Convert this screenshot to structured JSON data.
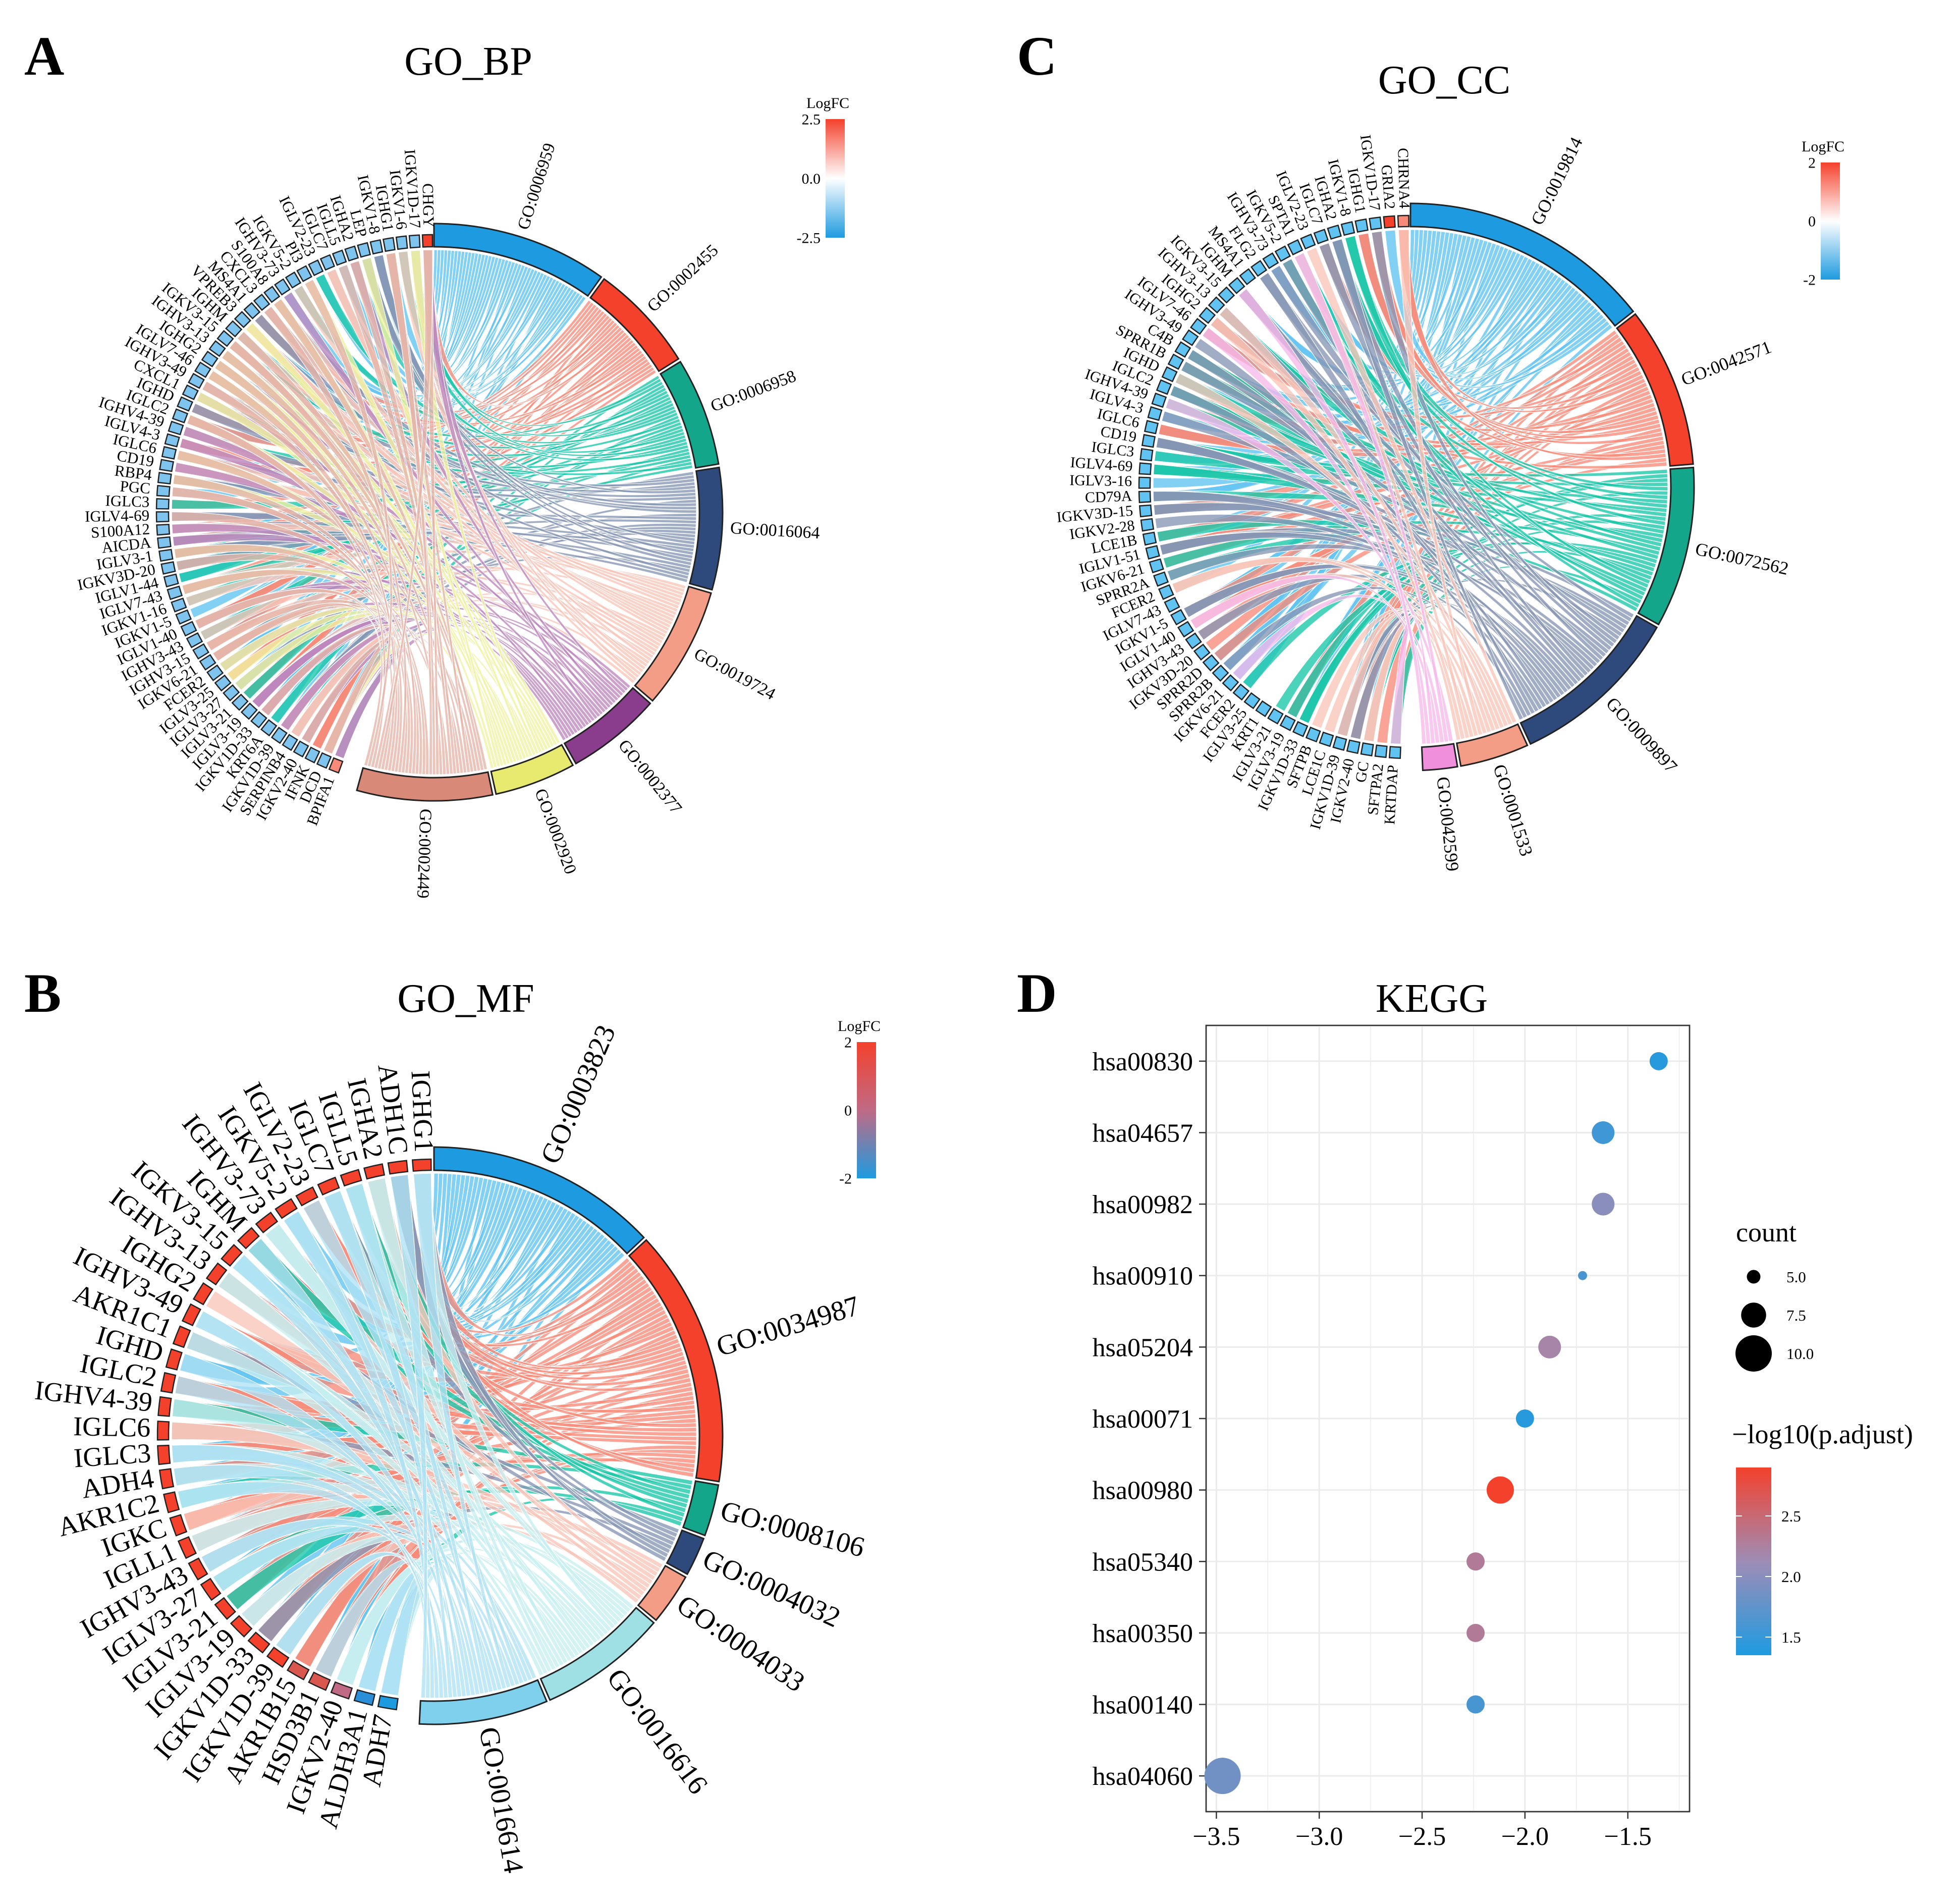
{
  "panels": {
    "A": {
      "letter": "A",
      "title": "GO_BP",
      "legend": {
        "title": "LogFC",
        "max_label": "2.5",
        "mid_label": "0.0",
        "min_label": "-2.5",
        "low": "#1E9BE0",
        "mid": "#FFFFFF",
        "high": "#F4412C"
      },
      "terms": [
        {
          "id": "GO:0006959",
          "color": "#1E9BE0",
          "light": "#60C3F2",
          "share": 13
        },
        {
          "id": "GO:0002455",
          "color": "#F4412C",
          "light": "#F78A78",
          "share": 8
        },
        {
          "id": "GO:0006958",
          "color": "#13A68A",
          "light": "#19C7A8",
          "share": 8
        },
        {
          "id": "GO:0016064",
          "color": "#2E4A7D",
          "light": "#8696B5",
          "share": 9
        },
        {
          "id": "GO:0019724",
          "color": "#F39C86",
          "light": "#F9C5B8",
          "share": 9
        },
        {
          "id": "GO:0002377",
          "color": "#8A3D8C",
          "light": "#BE88BE",
          "share": 7
        },
        {
          "id": "GO:0002920",
          "color": "#E7EA6E",
          "light": "#F0F2A2",
          "share": 6
        },
        {
          "id": "GO:0002449",
          "color": "#D98978",
          "light": "#E6B5A8",
          "share": 10
        }
      ],
      "genes": [
        "BPIFA1",
        "DCD",
        "IFNK",
        "IGKV2-40",
        "SERPINB4",
        "IGKV1D-39",
        "KRT6A",
        "IGKV1D-33",
        "IGLV3-19",
        "IGLV3-21",
        "IGLV3-27",
        "IGLV3-25",
        "FCER2",
        "IGKV6-21",
        "IGHV3-15",
        "IGHV3-43",
        "IGLV1-40",
        "IGKV1-5",
        "IGKV1-16",
        "IGLV7-43",
        "IGLV1-44",
        "IGKV3D-20",
        "IGLV3-1",
        "AICDA",
        "S100A12",
        "IGLV4-69",
        "IGLC3",
        "PGC",
        "RBP4",
        "CD19",
        "IGLC6",
        "IGLV4-3",
        "IGHV4-39",
        "IGLC2",
        "IGHD",
        "CXCL1",
        "IGHV3-49",
        "IGLV7-46",
        "IGHG2",
        "IGHV3-13",
        "IGKV3-15",
        "IGHM",
        "VPREB3",
        "MS4A1",
        "CXCL3",
        "S100A8",
        "IGHV3-73",
        "IGKV5-2",
        "PI3",
        "IGLV2-23",
        "IGLC7",
        "IGLL5",
        "IGHA2",
        "LEP",
        "IGKV1-8",
        "IGHG1",
        "IGKV1-6",
        "IGKV1D-17",
        "CHGY"
      ],
      "gene_colors": [
        "#F78A78",
        "#7EC4EE",
        "#7EC4EE",
        "#7EC4EE",
        "#7EC4EE",
        "#7EC4EE",
        "#7EC4EE",
        "#7EC4EE",
        "#7EC4EE",
        "#7EC4EE",
        "#7EC4EE",
        "#7EC4EE",
        "#7EC4EE",
        "#7EC4EE",
        "#7EC4EE",
        "#7EC4EE",
        "#7EC4EE",
        "#7EC4EE",
        "#7EC4EE",
        "#7EC4EE",
        "#7EC4EE",
        "#7EC4EE",
        "#7EC4EE",
        "#7EC4EE",
        "#7EC4EE",
        "#7EC4EE",
        "#7EC4EE",
        "#7EC4EE",
        "#7EC4EE",
        "#7EC4EE",
        "#7EC4EE",
        "#7EC4EE",
        "#7EC4EE",
        "#7EC4EE",
        "#7EC4EE",
        "#7EC4EE",
        "#7EC4EE",
        "#7EC4EE",
        "#7EC4EE",
        "#7EC4EE",
        "#7EC4EE",
        "#7EC4EE",
        "#7EC4EE",
        "#7EC4EE",
        "#7EC4EE",
        "#7EC4EE",
        "#7EC4EE",
        "#7EC4EE",
        "#7EC4EE",
        "#7EC4EE",
        "#7EC4EE",
        "#7EC4EE",
        "#7EC4EE",
        "#7EC4EE",
        "#7EC4EE",
        "#7EC4EE",
        "#7EC4EE",
        "#7EC4EE",
        "#F4412C"
      ]
    },
    "C": {
      "letter": "C",
      "title": "GO_CC",
      "legend": {
        "title": "LogFC",
        "max_label": "2",
        "mid_label": "0",
        "min_label": "-2",
        "low": "#1E9BE0",
        "mid": "#FFFFFF",
        "high": "#F4412C"
      },
      "terms": [
        {
          "id": "GO:0019814",
          "color": "#1E9BE0",
          "light": "#60C3F2",
          "share": 22
        },
        {
          "id": "GO:0042571",
          "color": "#F4412C",
          "light": "#F78A78",
          "share": 14
        },
        {
          "id": "GO:0072562",
          "color": "#13A68A",
          "light": "#19C7A8",
          "share": 14
        },
        {
          "id": "GO:0009897",
          "color": "#2E4A7D",
          "light": "#8696B5",
          "share": 15
        },
        {
          "id": "GO:0001533",
          "color": "#F39C86",
          "light": "#F9C5B8",
          "share": 6
        },
        {
          "id": "GO:0042599",
          "color": "#F08FDC",
          "light": "#F7B9EA",
          "share": 3
        }
      ],
      "genes": [
        "KRTDAP",
        "SFTPA2",
        "GC",
        "IGKV2-40",
        "IGKV1D-39",
        "LCE1C",
        "SFTPB",
        "IGKV1D-33",
        "IGLV3-19",
        "IGLV3-21",
        "KRT1",
        "IGLV3-25",
        "FCER2",
        "IGKV6-21",
        "SPRR2B",
        "SPRR2D",
        "IGKV3D-20",
        "IGHV3-43",
        "IGLV1-40",
        "IGKV1-5",
        "IGLV7-43",
        "FCER2",
        "SPRR2A",
        "IGKV6-21",
        "IGLV1-51",
        "LCE1B",
        "IGKV2-28",
        "IGKV3D-15",
        "CD79A",
        "IGLV3-16",
        "IGLV4-69",
        "IGLC3",
        "CD19",
        "IGLC6",
        "IGLV4-3",
        "IGHV4-39",
        "IGLC2",
        "IGHD",
        "SPRR1B",
        "C4B",
        "IGHV3-49",
        "IGLV7-46",
        "IGHG2",
        "IGHV3-13",
        "IGKV3-15",
        "IGHM",
        "MS4A1",
        "FLG2",
        "IGHV3-73",
        "IGKV5-2",
        "SPTA1",
        "IGLV2-23",
        "IGLC7",
        "IGHA2",
        "IGKV1-8",
        "IGHG1",
        "IGKV1D-17",
        "GRIA2",
        "CHRNA4"
      ],
      "gene_colors": [
        "#60C3F2",
        "#60C3F2",
        "#60C3F2",
        "#60C3F2",
        "#60C3F2",
        "#60C3F2",
        "#60C3F2",
        "#60C3F2",
        "#60C3F2",
        "#60C3F2",
        "#60C3F2",
        "#60C3F2",
        "#60C3F2",
        "#60C3F2",
        "#60C3F2",
        "#60C3F2",
        "#60C3F2",
        "#60C3F2",
        "#60C3F2",
        "#60C3F2",
        "#60C3F2",
        "#60C3F2",
        "#60C3F2",
        "#60C3F2",
        "#60C3F2",
        "#60C3F2",
        "#60C3F2",
        "#60C3F2",
        "#60C3F2",
        "#60C3F2",
        "#60C3F2",
        "#60C3F2",
        "#60C3F2",
        "#60C3F2",
        "#60C3F2",
        "#60C3F2",
        "#60C3F2",
        "#60C3F2",
        "#60C3F2",
        "#60C3F2",
        "#60C3F2",
        "#60C3F2",
        "#60C3F2",
        "#60C3F2",
        "#60C3F2",
        "#60C3F2",
        "#60C3F2",
        "#60C3F2",
        "#60C3F2",
        "#60C3F2",
        "#60C3F2",
        "#60C3F2",
        "#60C3F2",
        "#60C3F2",
        "#60C3F2",
        "#60C3F2",
        "#60C3F2",
        "#F4412C",
        "#F78A78"
      ]
    },
    "B": {
      "letter": "B",
      "title": "GO_MF",
      "legend": {
        "title": "LogFC",
        "max_label": "2",
        "mid_label": "0",
        "min_label": "-2",
        "low": "#1E9BE0",
        "mid": "#C06A85",
        "high": "#F4412C"
      },
      "terms": [
        {
          "id": "GO:0003823",
          "color": "#1E9BE0",
          "light": "#60C3F2",
          "share": 18
        },
        {
          "id": "GO:0034987",
          "color": "#F4412C",
          "light": "#F78A78",
          "share": 20
        },
        {
          "id": "GO:0008106",
          "color": "#13A68A",
          "light": "#19C7A8",
          "share": 4
        },
        {
          "id": "GO:0004032",
          "color": "#2E4A7D",
          "light": "#8696B5",
          "share": 3
        },
        {
          "id": "GO:0004033",
          "color": "#F39C86",
          "light": "#F9C5B8",
          "share": 4
        },
        {
          "id": "GO:0016616",
          "color": "#9FE0E5",
          "light": "#C5EEF1",
          "share": 10
        },
        {
          "id": "GO:0016614",
          "color": "#7ED0EC",
          "light": "#AEE2F4",
          "share": 10
        }
      ],
      "genes": [
        "ADH7",
        "ALDH3A1",
        "IGKV2-40",
        "HSD3B1",
        "AKR1B15",
        "IGKV1D-39",
        "IGKV1D-33",
        "IGLV3-19",
        "IGLV3-21",
        "IGLV3-27",
        "IGHV3-43",
        "IGLL1",
        "IGKC",
        "AKR1C2",
        "ADH4",
        "IGLC3",
        "IGLC6",
        "IGHV4-39",
        "IGLC2",
        "IGHD",
        "AKR1C1",
        "IGHV3-49",
        "IGHG2",
        "IGHV3-13",
        "IGKV3-15",
        "IGHM",
        "IGHV3-73",
        "IGKV5-2",
        "IGLV2-23",
        "IGLC7",
        "IGLL5",
        "IGHA2",
        "ADH1C",
        "IGHG1"
      ],
      "gene_colors": [
        "#1E9BE0",
        "#2A8FD8",
        "#C06A85",
        "#D9574F",
        "#D9574F",
        "#F4412C",
        "#F4412C",
        "#F4412C",
        "#F4412C",
        "#F4412C",
        "#F4412C",
        "#F4412C",
        "#F4412C",
        "#F4412C",
        "#F4412C",
        "#F4412C",
        "#F4412C",
        "#F4412C",
        "#F4412C",
        "#F4412C",
        "#F4412C",
        "#F4412C",
        "#F4412C",
        "#F4412C",
        "#F4412C",
        "#F4412C",
        "#F4412C",
        "#F4412C",
        "#F4412C",
        "#F4412C",
        "#F4412C",
        "#F4412C",
        "#F4412C",
        "#F4412C"
      ]
    },
    "D": {
      "letter": "D",
      "title": "KEGG"
    }
  },
  "chart_data": [
    {
      "type": "chord",
      "panel": "A",
      "title": "GO_BP",
      "legend_title": "LogFC",
      "color_range": [
        -2.5,
        2.5
      ],
      "terms": [
        "GO:0006959",
        "GO:0002455",
        "GO:0006958",
        "GO:0016064",
        "GO:0019724",
        "GO:0002377",
        "GO:0002920",
        "GO:0002449"
      ]
    },
    {
      "type": "chord",
      "panel": "C",
      "title": "GO_CC",
      "legend_title": "LogFC",
      "color_range": [
        -2,
        2
      ],
      "terms": [
        "GO:0019814",
        "GO:0042571",
        "GO:0072562",
        "GO:0009897",
        "GO:0001533",
        "GO:0042599"
      ]
    },
    {
      "type": "chord",
      "panel": "B",
      "title": "GO_MF",
      "legend_title": "LogFC",
      "color_range": [
        -2,
        2
      ],
      "terms": [
        "GO:0003823",
        "GO:0034987",
        "GO:0008106",
        "GO:0004032",
        "GO:0004033",
        "GO:0016616",
        "GO:0016614"
      ]
    },
    {
      "type": "scatter",
      "panel": "D",
      "title": "KEGG",
      "categories": [
        "hsa00830",
        "hsa04657",
        "hsa00982",
        "hsa00910",
        "hsa05204",
        "hsa00071",
        "hsa00980",
        "hsa05340",
        "hsa00350",
        "hsa00140",
        "hsa04060"
      ],
      "x": [
        -1.35,
        -1.62,
        -1.62,
        -1.72,
        -1.88,
        -2.0,
        -2.12,
        -2.24,
        -2.24,
        -2.24,
        -3.47
      ],
      "count": [
        6,
        7,
        7,
        4,
        7,
        6,
        8,
        6,
        6,
        6,
        10
      ],
      "neglog10_padj": [
        1.4,
        1.55,
        2.0,
        1.6,
        2.2,
        1.4,
        2.9,
        2.3,
        2.3,
        1.6,
        1.85
      ],
      "xlim": [
        -3.55,
        -1.2
      ],
      "xticks": [
        -3.5,
        -3.0,
        -2.5,
        -2.0,
        -1.5
      ],
      "xtick_labels": [
        "−3.5",
        "−3.0",
        "−2.5",
        "−2.0",
        "−1.5"
      ],
      "size_legend": {
        "title": "count",
        "values": [
          5.0,
          7.5,
          10.0
        ],
        "labels": [
          "5.0",
          "7.5",
          "10.0"
        ]
      },
      "color_legend": {
        "title": "−log10(p.adjust)",
        "range": [
          1.35,
          2.9
        ],
        "ticks": [
          1.5,
          2.0,
          2.5
        ],
        "tick_labels": [
          "1.5",
          "2.0",
          "2.5"
        ],
        "low": "#1E9BE0",
        "mid": "#9E8CB6",
        "high": "#F4412C"
      },
      "grid": true
    }
  ]
}
